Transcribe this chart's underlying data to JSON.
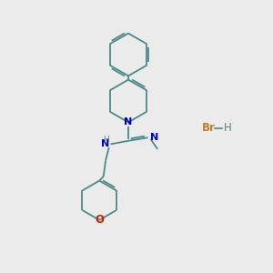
{
  "bg_color": "#ebebeb",
  "bond_color": "#4a8a8a",
  "N_color": "#0000cc",
  "O_color": "#cc2200",
  "Br_color": "#cc7722",
  "lw": 1.3,
  "figsize": [
    3.0,
    3.0
  ],
  "dpi": 100,
  "xlim": [
    0,
    10
  ],
  "ylim": [
    0,
    10
  ]
}
